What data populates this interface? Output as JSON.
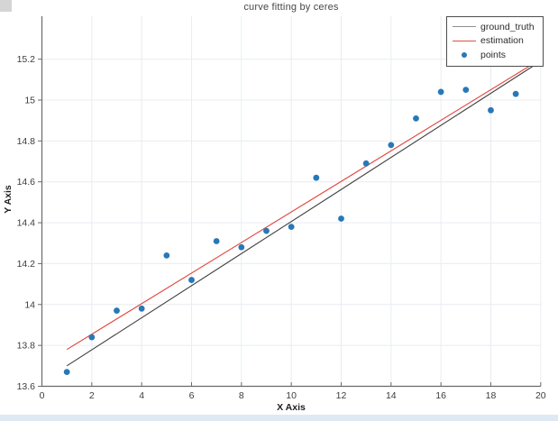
{
  "window": {
    "corner_artifact_color": "#d5d5d5",
    "bottom_strip_color": "#dfe9f3"
  },
  "chart_data": {
    "type": "scatter",
    "title": "curve fitting by ceres",
    "xlabel": "X Axis",
    "ylabel": "Y Axis",
    "xlim": [
      0,
      20
    ],
    "ylim": [
      13.6,
      15.41
    ],
    "xticks": [
      0,
      2,
      4,
      6,
      8,
      10,
      12,
      14,
      16,
      18,
      20
    ],
    "yticks": [
      13.6,
      13.8,
      14,
      14.2,
      14.4,
      14.6,
      14.8,
      15,
      15.2
    ],
    "grid": true,
    "legend_position": "top-right",
    "colors": {
      "axis": "#6a6a6a",
      "grid": "#eaecf0",
      "tick_label": "#3c3c3c"
    },
    "series": [
      {
        "name": "ground_truth",
        "type": "line",
        "color": "#424242",
        "legend_swatch_color": "#8f8f8f",
        "points": [
          [
            1,
            13.7
          ],
          [
            20,
            15.19
          ]
        ]
      },
      {
        "name": "estimation",
        "type": "line",
        "color": "#e1453e",
        "legend_swatch_color": "#e1514a",
        "points": [
          [
            1,
            13.78
          ],
          [
            20,
            15.2
          ]
        ]
      },
      {
        "name": "points",
        "type": "scatter",
        "color": "#2878b8",
        "x": [
          1,
          2,
          3,
          4,
          5,
          6,
          7,
          8,
          9,
          10,
          11,
          12,
          13,
          14,
          15,
          16,
          17,
          18,
          19
        ],
        "y": [
          13.67,
          13.84,
          13.97,
          13.98,
          14.24,
          14.12,
          14.31,
          14.28,
          14.36,
          14.38,
          14.62,
          14.42,
          14.69,
          14.78,
          14.91,
          15.04,
          15.05,
          14.95,
          15.03
        ]
      }
    ]
  }
}
